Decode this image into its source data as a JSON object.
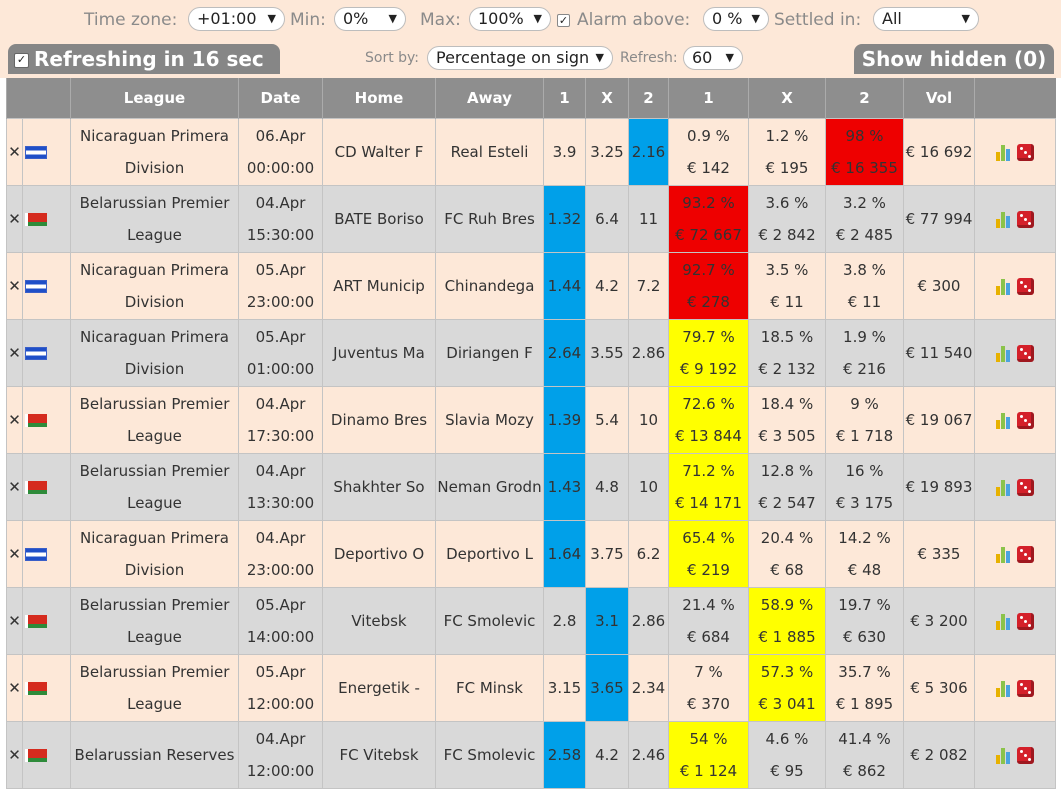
{
  "filters": {
    "timezone_label": "Time zone:",
    "timezone_value": "+01:00",
    "min_label": "Min:",
    "min_value": "0%",
    "max_label": "Max:",
    "max_value": "100%",
    "alarm_checked": true,
    "alarm_label": "Alarm above:",
    "alarm_value": "0 %",
    "settled_label": "Settled in:",
    "settled_value": "All"
  },
  "toolbar": {
    "refreshing_label": "Refreshing in 16 sec",
    "sort_label": "Sort by:",
    "sort_value": "Percentage on sign",
    "refresh_label": "Refresh:",
    "refresh_value": "60",
    "show_hidden_label": "Show hidden (0)"
  },
  "table": {
    "headers": [
      "League",
      "Date",
      "Home",
      "Away",
      "1",
      "X",
      "2",
      "1",
      "X",
      "2",
      "Vol"
    ],
    "colors": {
      "blue": "#00a0e9",
      "red": "#ee0000",
      "yellow": "#ffff00",
      "row_even": "#fde8d8",
      "row_odd": "#d9d9d9",
      "header": "#8e8e8e"
    },
    "rows": [
      {
        "flag": "nicaragua-flag",
        "league1": "Nicaraguan Primera",
        "league2": "Division",
        "date": "06.Apr",
        "time": "00:00:00",
        "home": "CD Walter F",
        "away": "Real Esteli",
        "o1": "3.9",
        "ox": "3.25",
        "o2": "2.16",
        "p1": "0.9 %",
        "v1": "€ 142",
        "px": "1.2 %",
        "vx": "€ 195",
        "p2": "98 %",
        "v2": "€ 16 355",
        "vol": "€ 16 692",
        "odd_hl": "2",
        "pct_hl": "2",
        "pct_color": "red"
      },
      {
        "flag": "belarus-flag",
        "league1": "Belarussian Premier",
        "league2": "League",
        "date": "04.Apr",
        "time": "15:30:00",
        "home": "BATE Boriso",
        "away": "FC Ruh Bres",
        "o1": "1.32",
        "ox": "6.4",
        "o2": "11",
        "p1": "93.2 %",
        "v1": "€ 72 667",
        "px": "3.6 %",
        "vx": "€ 2 842",
        "p2": "3.2 %",
        "v2": "€ 2 485",
        "vol": "€ 77 994",
        "odd_hl": "1",
        "pct_hl": "1",
        "pct_color": "red"
      },
      {
        "flag": "nicaragua-flag",
        "league1": "Nicaraguan Primera",
        "league2": "Division",
        "date": "05.Apr",
        "time": "23:00:00",
        "home": "ART Municip",
        "away": "Chinandega",
        "o1": "1.44",
        "ox": "4.2",
        "o2": "7.2",
        "p1": "92.7 %",
        "v1": "€ 278",
        "px": "3.5 %",
        "vx": "€ 11",
        "p2": "3.8 %",
        "v2": "€ 11",
        "vol": "€ 300",
        "odd_hl": "1",
        "pct_hl": "1",
        "pct_color": "red"
      },
      {
        "flag": "nicaragua-flag",
        "league1": "Nicaraguan Primera",
        "league2": "Division",
        "date": "05.Apr",
        "time": "01:00:00",
        "home": "Juventus Ma",
        "away": "Diriangen F",
        "o1": "2.64",
        "ox": "3.55",
        "o2": "2.86",
        "p1": "79.7 %",
        "v1": "€ 9 192",
        "px": "18.5 %",
        "vx": "€ 2 132",
        "p2": "1.9 %",
        "v2": "€ 216",
        "vol": "€ 11 540",
        "odd_hl": "1",
        "pct_hl": "1",
        "pct_color": "yellow"
      },
      {
        "flag": "belarus-flag",
        "league1": "Belarussian Premier",
        "league2": "League",
        "date": "04.Apr",
        "time": "17:30:00",
        "home": "Dinamo Bres",
        "away": "Slavia Mozy",
        "o1": "1.39",
        "ox": "5.4",
        "o2": "10",
        "p1": "72.6 %",
        "v1": "€ 13 844",
        "px": "18.4 %",
        "vx": "€ 3 505",
        "p2": "9 %",
        "v2": "€ 1 718",
        "vol": "€ 19 067",
        "odd_hl": "1",
        "pct_hl": "1",
        "pct_color": "yellow"
      },
      {
        "flag": "belarus-flag",
        "league1": "Belarussian Premier",
        "league2": "League",
        "date": "04.Apr",
        "time": "13:30:00",
        "home": "Shakhter So",
        "away": "Neman Grodn",
        "o1": "1.43",
        "ox": "4.8",
        "o2": "10",
        "p1": "71.2 %",
        "v1": "€ 14 171",
        "px": "12.8 %",
        "vx": "€ 2 547",
        "p2": "16 %",
        "v2": "€ 3 175",
        "vol": "€ 19 893",
        "odd_hl": "1",
        "pct_hl": "1",
        "pct_color": "yellow"
      },
      {
        "flag": "nicaragua-flag",
        "league1": "Nicaraguan Primera",
        "league2": "Division",
        "date": "04.Apr",
        "time": "23:00:00",
        "home": "Deportivo O",
        "away": "Deportivo L",
        "o1": "1.64",
        "ox": "3.75",
        "o2": "6.2",
        "p1": "65.4 %",
        "v1": "€ 219",
        "px": "20.4 %",
        "vx": "€ 68",
        "p2": "14.2 %",
        "v2": "€ 48",
        "vol": "€ 335",
        "odd_hl": "1",
        "pct_hl": "1",
        "pct_color": "yellow"
      },
      {
        "flag": "belarus-flag",
        "league1": "Belarussian Premier",
        "league2": "League",
        "date": "05.Apr",
        "time": "14:00:00",
        "home": "Vitebsk",
        "away": "FC Smolevic",
        "o1": "2.8",
        "ox": "3.1",
        "o2": "2.86",
        "p1": "21.4 %",
        "v1": "€ 684",
        "px": "58.9 %",
        "vx": "€ 1 885",
        "p2": "19.7 %",
        "v2": "€ 630",
        "vol": "€ 3 200",
        "odd_hl": "x",
        "pct_hl": "x",
        "pct_color": "yellow"
      },
      {
        "flag": "belarus-flag",
        "league1": "Belarussian Premier",
        "league2": "League",
        "date": "05.Apr",
        "time": "12:00:00",
        "home": "Energetik -",
        "away": "FC Minsk",
        "o1": "3.15",
        "ox": "3.65",
        "o2": "2.34",
        "p1": "7 %",
        "v1": "€ 370",
        "px": "57.3 %",
        "vx": "€ 3 041",
        "p2": "35.7 %",
        "v2": "€ 1 895",
        "vol": "€ 5 306",
        "odd_hl": "x",
        "pct_hl": "x",
        "pct_color": "yellow"
      },
      {
        "flag": "belarus-flag",
        "league1": "Belarussian Reserves",
        "league2": "",
        "date": "04.Apr",
        "time": "12:00:00",
        "home": "FC Vitebsk",
        "away": "FC Smolevic",
        "o1": "2.58",
        "ox": "4.2",
        "o2": "2.46",
        "p1": "54 %",
        "v1": "€ 1 124",
        "px": "4.6 %",
        "vx": "€ 95",
        "p2": "41.4 %",
        "v2": "€ 862",
        "vol": "€ 2 082",
        "odd_hl": "1",
        "pct_hl": "1",
        "pct_color": "yellow"
      }
    ]
  }
}
